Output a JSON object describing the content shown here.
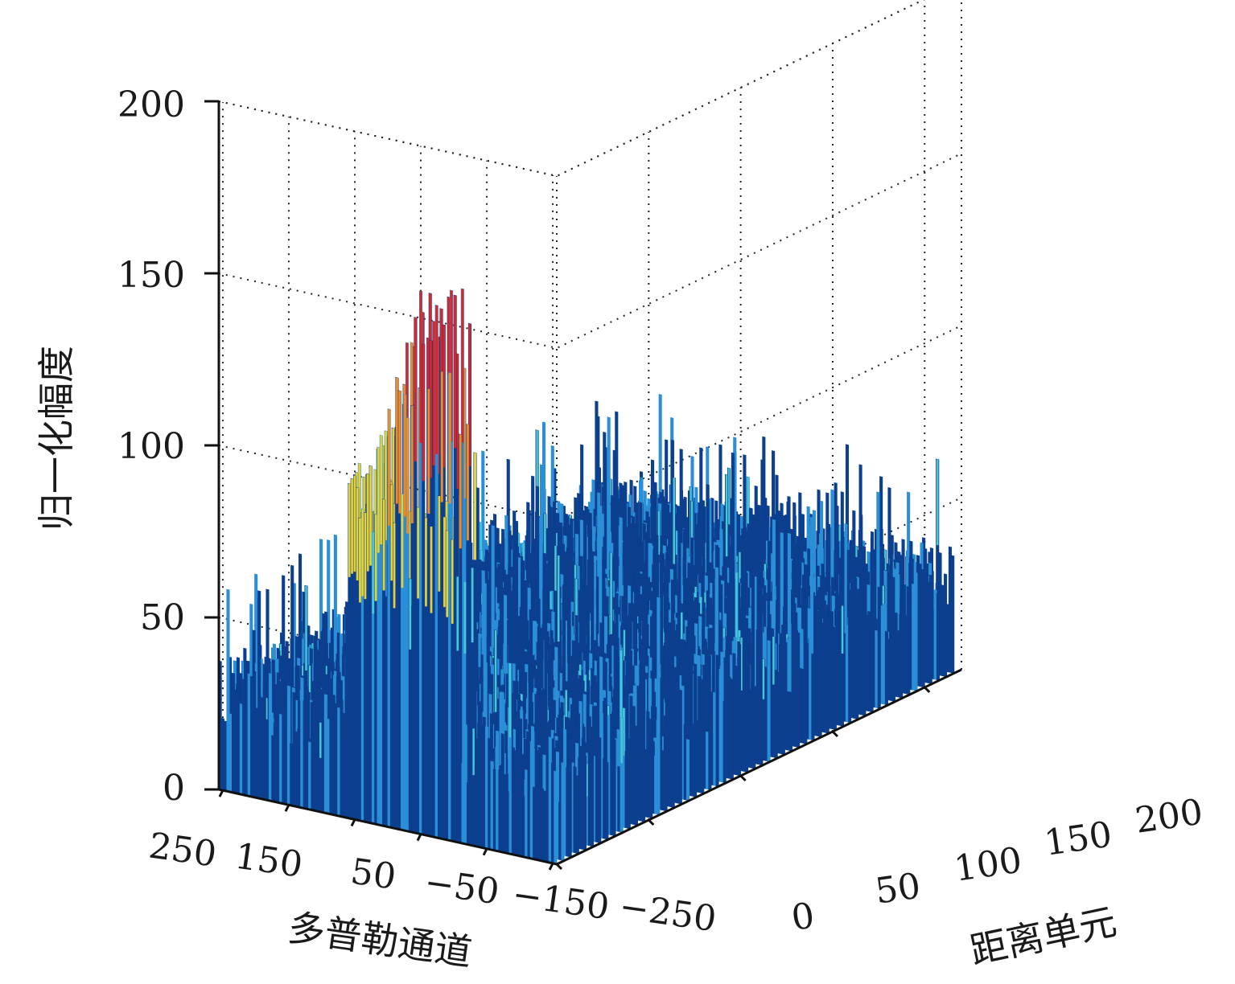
{
  "chart_data": {
    "type": "3d-bar",
    "title": "",
    "xlabel": "多普勒通道",
    "ylabel": "距离单元",
    "zlabel": "归一化幅度",
    "doppler_ticks": [
      "250",
      "150",
      "50",
      "−50",
      "−150",
      "−250"
    ],
    "range_ticks": [
      "0",
      "50",
      "100",
      "150",
      "200"
    ],
    "z_ticks": [
      "0",
      "50",
      "100",
      "150",
      "200"
    ],
    "doppler_lim": [
      256,
      -256
    ],
    "range_lim": [
      0,
      220
    ],
    "zlim": [
      0,
      200
    ],
    "grid": true,
    "colormap": "jet",
    "clutter_floor_mean": 30,
    "clutter_floor_max": 65,
    "peak_region": {
      "doppler_range": [
        -110,
        60
      ],
      "range_cell_range": [
        0,
        10
      ],
      "typical_value": 100,
      "max_value": 163
    },
    "peak_values": [
      {
        "doppler": 58,
        "value": 104
      },
      {
        "doppler": 45,
        "value": 97
      },
      {
        "doppler": 30,
        "value": 108
      },
      {
        "doppler": 15,
        "value": 119
      },
      {
        "doppler": 0,
        "value": 122
      },
      {
        "doppler": -15,
        "value": 141
      },
      {
        "doppler": -25,
        "value": 130
      },
      {
        "doppler": -40,
        "value": 155
      },
      {
        "doppler": -50,
        "value": 158
      },
      {
        "doppler": -60,
        "value": 136
      },
      {
        "doppler": -70,
        "value": 163
      },
      {
        "doppler": -80,
        "value": 148
      },
      {
        "doppler": -92,
        "value": 146
      },
      {
        "doppler": -100,
        "value": 162
      },
      {
        "doppler": -108,
        "value": 121
      }
    ],
    "isolated_spikes": [
      {
        "doppler": -200,
        "range_cell": 140,
        "value": 63
      }
    ],
    "colors": {
      "low": "#0d3f8f",
      "mid": "#2a8fd6",
      "cyan": "#45c8d8",
      "yellow": "#e3d13a",
      "orange": "#f08a24",
      "red": "#d8262a"
    }
  }
}
